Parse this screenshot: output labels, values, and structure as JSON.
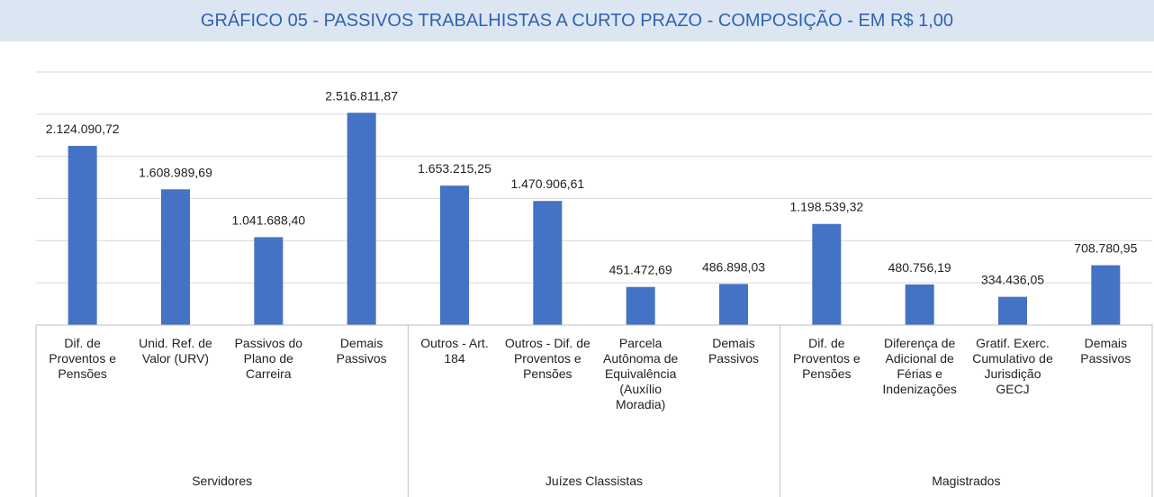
{
  "chart_data": {
    "type": "bar",
    "title": "GRÁFICO 05  - PASSIVOS TRABALHISTAS A  CURTO PRAZO - COMPOSIÇÃO - EM R$ 1,00",
    "categories": [
      "Dif. de Proventos e Pensões",
      "Unid. Ref. de Valor (URV)",
      "Passivos do Plano de Carreira",
      "Demais Passivos",
      "Outros - Art. 184",
      "Outros - Dif. de Proventos e Pensões",
      "Parcela Autônoma de Equivalência (Auxílio Moradia)",
      "Demais Passivos",
      "Dif. de Proventos e Pensões",
      "Diferença de Adicional de Férias e Indenizações",
      "Gratif. Exerc. Cumulativo de Jurisdição GECJ",
      "Demais Passivos"
    ],
    "groups": [
      {
        "name": "Servidores",
        "size": 4
      },
      {
        "name": "Juízes Classistas",
        "size": 4
      },
      {
        "name": "Magistrados",
        "size": 4
      }
    ],
    "values": [
      2124090.72,
      1608989.69,
      1041688.4,
      2516811.87,
      1653215.25,
      1470906.61,
      451472.69,
      486898.03,
      1198539.32,
      480756.19,
      334436.05,
      708780.95
    ],
    "value_labels": [
      "2.124.090,72",
      "1.608.989,69",
      "1.041.688,40",
      "2.516.811,87",
      "1.653.215,25",
      "1.470.906,61",
      "451.472,69",
      "486.898,03",
      "1.198.539,32",
      "480.756,19",
      "334.436,05",
      "708.780,95"
    ],
    "color": "#4472c4",
    "ylim": [
      0,
      3000000
    ],
    "yticks": [
      0,
      500000,
      1000000,
      1500000,
      2000000,
      2500000,
      3000000
    ],
    "grid": true
  }
}
